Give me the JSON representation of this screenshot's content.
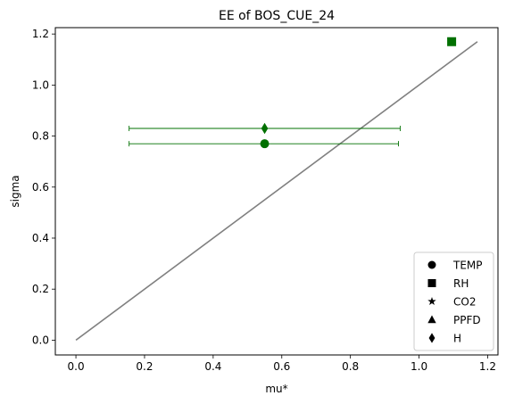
{
  "chart_data": {
    "type": "scatter",
    "title": "EE of BOS_CUE_24",
    "xlabel": "mu*",
    "ylabel": "sigma",
    "xlim": [
      -0.06,
      1.23
    ],
    "ylim": [
      -0.058,
      1.225
    ],
    "xticks": [
      0.0,
      0.2,
      0.4,
      0.6,
      0.8,
      1.0,
      1.2
    ],
    "xtick_labels": [
      "0.0",
      "0.2",
      "0.4",
      "0.6",
      "0.8",
      "1.0",
      "1.2"
    ],
    "yticks": [
      0.0,
      0.2,
      0.4,
      0.6,
      0.8,
      1.0,
      1.2
    ],
    "ytick_labels": [
      "0.0",
      "0.2",
      "0.4",
      "0.6",
      "0.8",
      "1.0",
      "1.2"
    ],
    "grid": false,
    "legend_position": "lower right",
    "point_color": "#007000",
    "reference_line": {
      "color": "#808080",
      "x": [
        0.0,
        1.17
      ],
      "y": [
        0.0,
        1.17
      ]
    },
    "series": [
      {
        "name": "TEMP",
        "marker": "circle",
        "x": 0.55,
        "y": 0.77,
        "xerr": [
          0.395,
          0.39
        ]
      },
      {
        "name": "RH",
        "marker": "square",
        "x": 1.095,
        "y": 1.17,
        "xerr": null
      },
      {
        "name": "CO2",
        "marker": "star",
        "x": null,
        "y": null,
        "xerr": null
      },
      {
        "name": "PPFD",
        "marker": "triangle",
        "x": null,
        "y": null,
        "xerr": null
      },
      {
        "name": "H",
        "marker": "diamond",
        "x": 0.55,
        "y": 0.83,
        "xerr": [
          0.395,
          0.395
        ]
      }
    ]
  }
}
